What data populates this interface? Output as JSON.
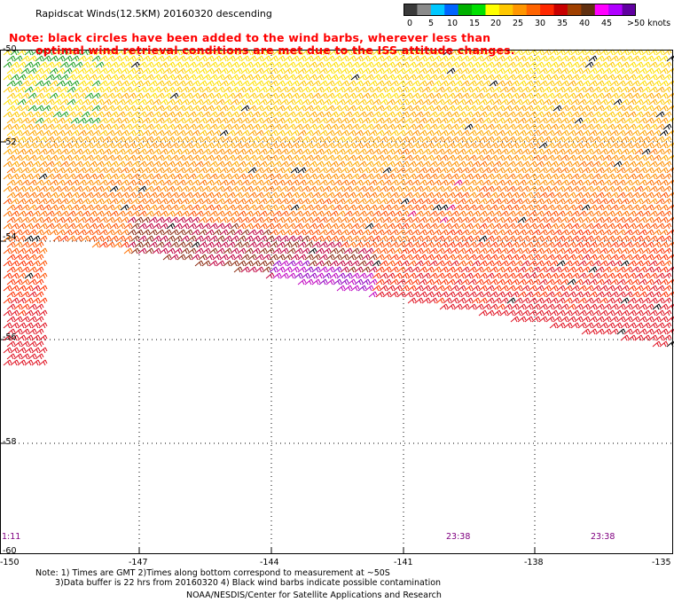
{
  "title": "Rapidscat Winds(12.5KM) 20160320 descending",
  "note": {
    "line1": "Note: black circles have been added to the wind barbs, wherever less than",
    "line2": "optimal wind retrieval conditions are met due to the ISS attitude changes."
  },
  "colorbar": {
    "labels": [
      "0",
      "5",
      "10",
      "15",
      "20",
      "25",
      "30",
      "35",
      "40",
      "45",
      ">50 knots"
    ],
    "colors": [
      "#3a3a3a",
      "#8a8a8a",
      "#00c8ff",
      "#0064ff",
      "#00b000",
      "#00e000",
      "#ffff00",
      "#ffc800",
      "#ff9600",
      "#ff6400",
      "#ff2800",
      "#c80000",
      "#a04000",
      "#603010",
      "#ff00ff",
      "#b000ff",
      "#6000a0"
    ]
  },
  "axes": {
    "lat_labels": [
      "-50",
      "-52",
      "-54",
      "-56",
      "-58",
      "-60"
    ],
    "lon_labels": [
      "-150",
      "-147",
      "-144",
      "-141",
      "-138",
      "-135"
    ]
  },
  "times": [
    "1:11",
    "23:38",
    "23:38"
  ],
  "footer": {
    "line1": "Note: 1) Times are GMT 2)Times along bottom correspond to measurement at ~50S",
    "line2": "3)Data buffer is 22 hrs from 20160320 4) Black wind barbs indicate possible contamination",
    "line3": "NOAA/NESDIS/Center for Satellite Applications and Research"
  }
}
